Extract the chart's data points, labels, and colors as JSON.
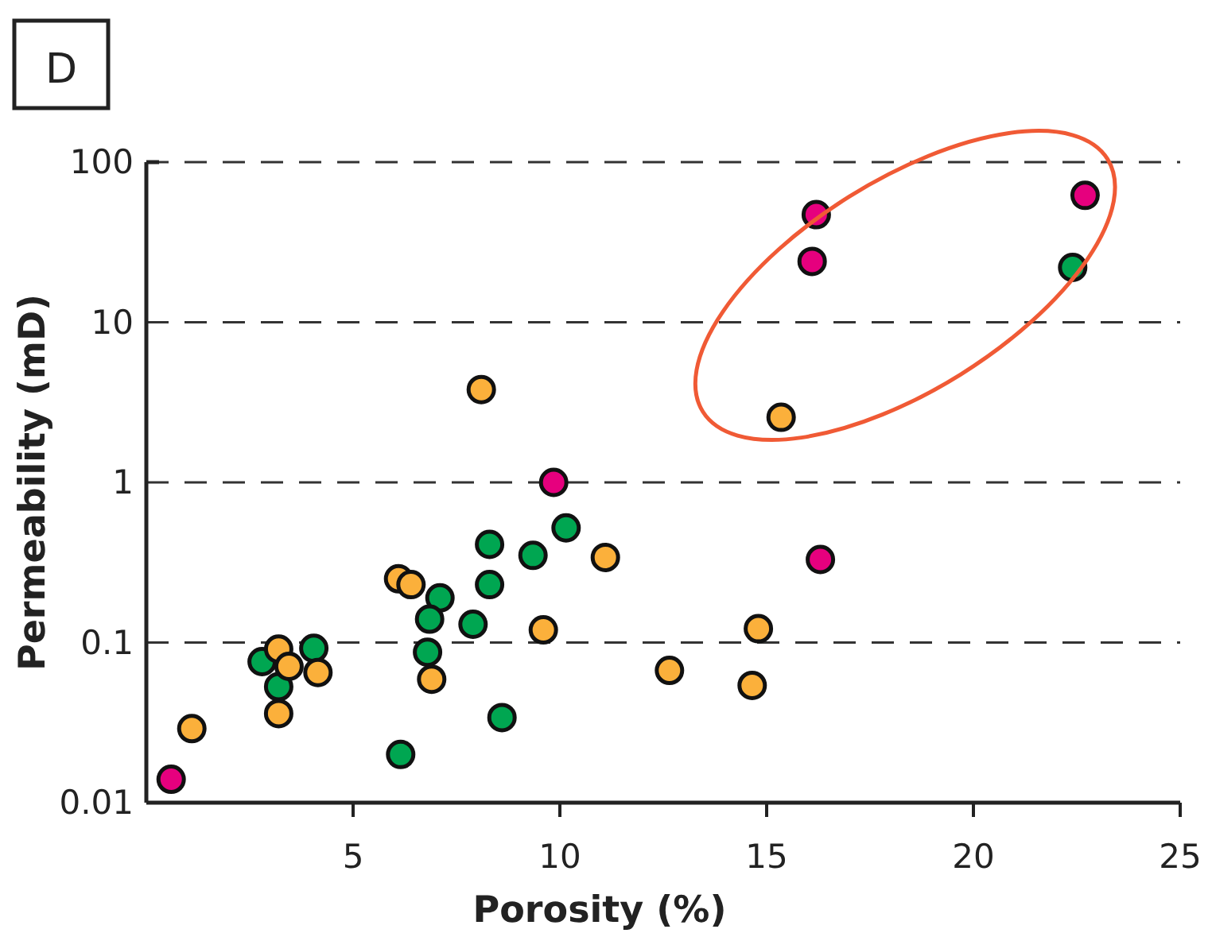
{
  "chart_data": {
    "type": "scatter",
    "title": "D",
    "xlabel": "Porosity (%)",
    "ylabel": "Permeability (mD)",
    "xlim": [
      0,
      25
    ],
    "xticks": [
      5,
      10,
      15,
      20,
      25
    ],
    "ylim": [
      0.01,
      100
    ],
    "yticks": [
      0.01,
      0.1,
      1,
      10,
      100
    ],
    "log": "y",
    "grid": "y",
    "line_style": "dashed",
    "marker": "circle",
    "series": [
      {
        "color": "#e6007e",
        "x": [
          0.6,
          9.85,
          16.3,
          16.2,
          16.1,
          22.7
        ],
        "values": [
          0.014,
          1.0,
          0.33,
          47,
          24,
          62
        ]
      },
      {
        "color": "#00a651",
        "x": [
          22.4,
          2.8,
          4.05,
          3.2,
          6.15,
          7.1,
          6.85,
          6.8,
          7.9,
          8.3,
          8.3,
          9.35,
          10.15,
          8.6
        ],
        "values": [
          22,
          0.076,
          0.092,
          0.053,
          0.02,
          0.19,
          0.14,
          0.087,
          0.13,
          0.23,
          0.41,
          0.35,
          0.52,
          0.034
        ]
      },
      {
        "color": "#fbb03b",
        "x": [
          1.1,
          3.2,
          3.45,
          4.15,
          3.2,
          6.1,
          6.4,
          6.9,
          9.6,
          11.1,
          12.65,
          14.65,
          14.8,
          8.1,
          15.35
        ],
        "values": [
          0.029,
          0.091,
          0.071,
          0.065,
          0.036,
          0.25,
          0.23,
          0.059,
          0.12,
          0.34,
          0.067,
          0.054,
          0.122,
          3.8,
          2.55
        ]
      }
    ]
  }
}
